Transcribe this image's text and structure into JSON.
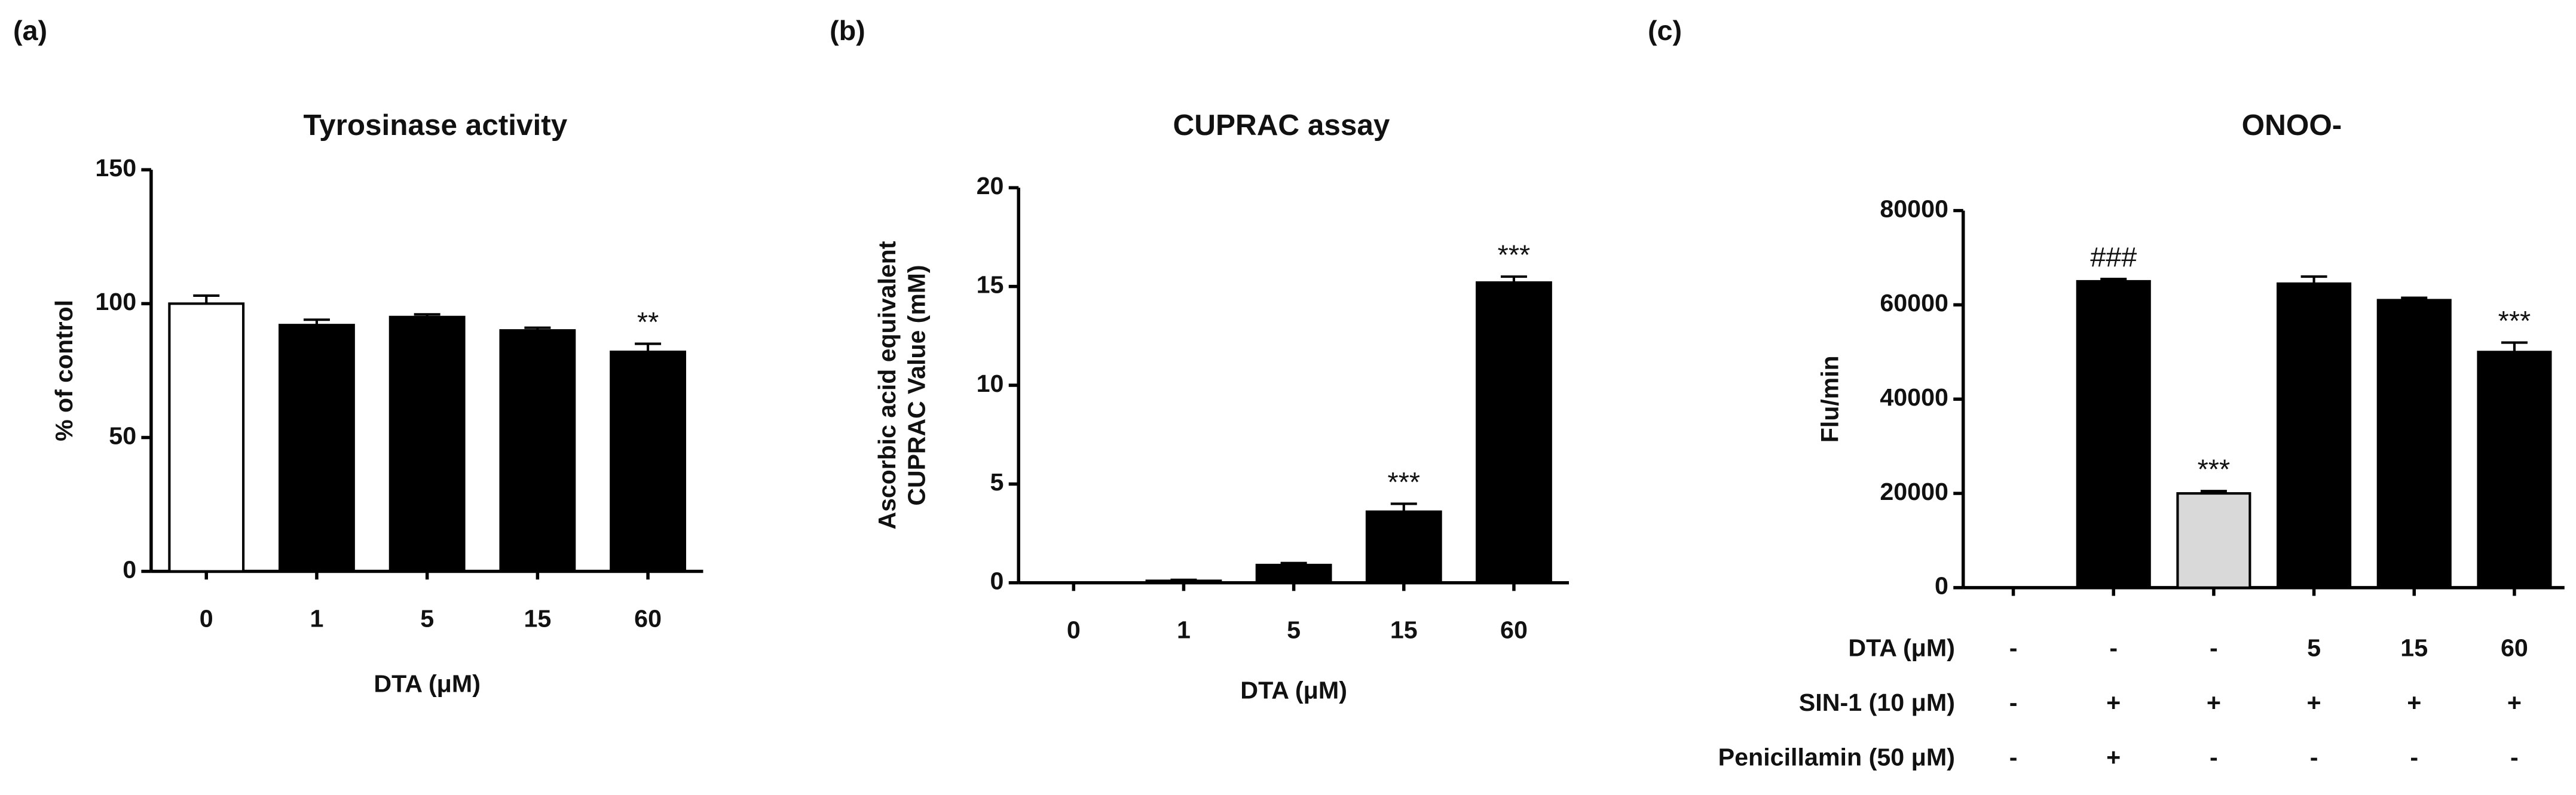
{
  "chart_data": [
    {
      "type": "bar",
      "panel": "(a)",
      "title": "Tyrosinase activity",
      "ylabel": [
        "% of control"
      ],
      "xlabel": "DTA (μM)",
      "categories": [
        "0",
        "1",
        "5",
        "15",
        "60"
      ],
      "values": [
        100,
        92,
        95,
        90,
        82
      ],
      "errors": [
        3,
        2,
        1,
        1,
        3
      ],
      "colors": [
        "#ffffff",
        "#000000",
        "#000000",
        "#000000",
        "#000000"
      ],
      "ylim": [
        0,
        150
      ],
      "yticks": [
        0,
        50,
        100,
        150
      ],
      "annotations": [
        {
          "index": 4,
          "text": "**"
        }
      ]
    },
    {
      "type": "bar",
      "panel": "(b)",
      "title": "CUPRAC assay",
      "ylabel": [
        "Ascorbic acid equivalent",
        "CUPRAC Value (mM)"
      ],
      "xlabel": "DTA (μM)",
      "categories": [
        "0",
        "1",
        "5",
        "15",
        "60"
      ],
      "values": [
        0,
        0.1,
        0.9,
        3.6,
        15.2
      ],
      "errors": [
        0,
        0.05,
        0.1,
        0.4,
        0.3
      ],
      "colors": [
        "#000000",
        "#000000",
        "#000000",
        "#000000",
        "#000000"
      ],
      "ylim": [
        0,
        20
      ],
      "yticks": [
        0,
        5,
        10,
        15,
        20
      ],
      "annotations": [
        {
          "index": 3,
          "text": "***"
        },
        {
          "index": 4,
          "text": "***"
        }
      ]
    },
    {
      "type": "bar",
      "panel": "(c)",
      "title": "ONOO-",
      "ylabel": [
        "Flu/min"
      ],
      "values": [
        0,
        65000,
        20000,
        64500,
        61000,
        50000
      ],
      "errors": [
        0,
        500,
        500,
        1500,
        500,
        2000
      ],
      "colors": [
        "#000000",
        "#000000",
        "#d9d9d9",
        "#000000",
        "#000000",
        "#000000"
      ],
      "ylim": [
        0,
        80000
      ],
      "yticks": [
        0,
        20000,
        40000,
        60000,
        80000
      ],
      "annotations": [
        {
          "index": 1,
          "text": "###"
        },
        {
          "index": 2,
          "text": "***"
        },
        {
          "index": 5,
          "text": "***"
        }
      ],
      "treatment_rows": [
        {
          "label": "DTA (μM)",
          "cells": [
            "-",
            "-",
            "-",
            "5",
            "15",
            "60"
          ]
        },
        {
          "label": "SIN-1 (10 μM)",
          "cells": [
            "-",
            "+",
            "+",
            "+",
            "+",
            "+"
          ]
        },
        {
          "label": "Penicillamin (50 μM)",
          "cells": [
            "-",
            "+",
            "-",
            "-",
            "-",
            "-"
          ]
        }
      ]
    }
  ]
}
